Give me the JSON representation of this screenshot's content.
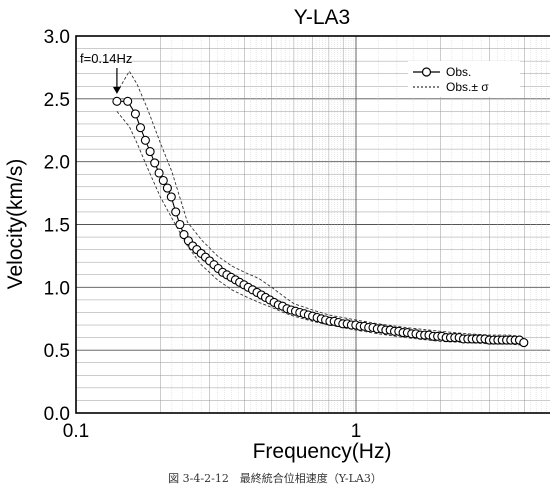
{
  "caption": "図 3-4-2-12　最終統合位相速度（Y-LA3）",
  "chart_data": {
    "type": "scatter",
    "title": "Y-LA3",
    "xlabel": "Frequency(Hz)",
    "ylabel": "Velocity(km/s)",
    "xscale": "log",
    "xlim": [
      0.1,
      5
    ],
    "ylim": [
      0,
      3
    ],
    "xticks": [
      {
        "value": 0.1,
        "label": "0.1"
      },
      {
        "value": 1,
        "label": "1"
      }
    ],
    "yticks": [
      {
        "value": 0,
        "label": "0.0"
      },
      {
        "value": 0.5,
        "label": "0.5"
      },
      {
        "value": 1,
        "label": "1.0"
      },
      {
        "value": 1.5,
        "label": "1.5"
      },
      {
        "value": 2,
        "label": "2.0"
      },
      {
        "value": 2.5,
        "label": "2.5"
      },
      {
        "value": 3,
        "label": "3.0"
      }
    ],
    "grid": true,
    "legend_position": "top-right",
    "annotation": {
      "text": "f=0.14Hz",
      "x": 0.14,
      "y": 2.5
    },
    "series": [
      {
        "name": "Obs.",
        "style": "line-circle",
        "x": [
          0.14,
          0.153,
          0.163,
          0.17,
          0.177,
          0.184,
          0.191,
          0.198,
          0.205,
          0.212,
          0.219,
          0.227,
          0.235,
          0.243,
          0.252,
          0.261,
          0.27,
          0.28,
          0.29,
          0.3,
          0.311,
          0.322,
          0.334,
          0.346,
          0.358,
          0.371,
          0.384,
          0.398,
          0.412,
          0.427,
          0.443,
          0.459,
          0.475,
          0.492,
          0.51,
          0.528,
          0.547,
          0.567,
          0.587,
          0.608,
          0.63,
          0.653,
          0.676,
          0.7,
          0.726,
          0.752,
          0.779,
          0.807,
          0.836,
          0.866,
          0.897,
          0.93,
          0.963,
          0.998,
          1.034,
          1.071,
          1.11,
          1.15,
          1.191,
          1.234,
          1.279,
          1.325,
          1.372,
          1.422,
          1.473,
          1.526,
          1.581,
          1.638,
          1.697,
          1.759,
          1.822,
          1.888,
          1.956,
          2.027,
          2.1,
          2.176,
          2.254,
          2.336,
          2.42,
          2.507,
          2.598,
          2.691,
          2.788,
          2.889,
          2.993,
          3.101,
          3.213,
          3.329,
          3.449,
          3.573,
          3.702,
          3.836,
          3.975
        ],
        "y": [
          2.48,
          2.48,
          2.38,
          2.27,
          2.17,
          2.08,
          1.99,
          1.91,
          1.85,
          1.79,
          1.72,
          1.6,
          1.5,
          1.42,
          1.37,
          1.33,
          1.3,
          1.27,
          1.24,
          1.21,
          1.18,
          1.15,
          1.12,
          1.1,
          1.08,
          1.06,
          1.04,
          1.02,
          1.0,
          0.98,
          0.96,
          0.94,
          0.92,
          0.9,
          0.88,
          0.86,
          0.85,
          0.83,
          0.82,
          0.81,
          0.8,
          0.79,
          0.78,
          0.77,
          0.76,
          0.75,
          0.74,
          0.73,
          0.73,
          0.72,
          0.71,
          0.71,
          0.7,
          0.7,
          0.69,
          0.69,
          0.68,
          0.68,
          0.67,
          0.67,
          0.66,
          0.66,
          0.65,
          0.65,
          0.64,
          0.64,
          0.63,
          0.63,
          0.62,
          0.62,
          0.62,
          0.61,
          0.61,
          0.61,
          0.6,
          0.6,
          0.6,
          0.6,
          0.59,
          0.59,
          0.59,
          0.59,
          0.59,
          0.59,
          0.58,
          0.58,
          0.58,
          0.58,
          0.58,
          0.58,
          0.58,
          0.58,
          0.56
        ]
      },
      {
        "name": "Obs.± σ",
        "style": "dashed",
        "upper": {
          "x": [
            0.14,
            0.155,
            0.165,
            0.18,
            0.2,
            0.22,
            0.25,
            0.28,
            0.32,
            0.36,
            0.4,
            0.45,
            0.5,
            0.55,
            0.6,
            0.7,
            0.8,
            1.0,
            1.2,
            1.5,
            2.0,
            2.5,
            3.0,
            3.5,
            3.9
          ],
          "y": [
            2.55,
            2.72,
            2.62,
            2.42,
            2.15,
            1.92,
            1.52,
            1.38,
            1.25,
            1.17,
            1.12,
            1.07,
            1.0,
            0.93,
            0.87,
            0.82,
            0.78,
            0.74,
            0.71,
            0.68,
            0.65,
            0.63,
            0.62,
            0.62,
            0.61
          ]
        },
        "lower": {
          "x": [
            0.14,
            0.155,
            0.165,
            0.18,
            0.2,
            0.22,
            0.25,
            0.28,
            0.32,
            0.36,
            0.4,
            0.45,
            0.5,
            0.55,
            0.6,
            0.7,
            0.8,
            1.0,
            1.2,
            1.5,
            2.0,
            2.5,
            3.0,
            3.5,
            3.9
          ],
          "y": [
            2.4,
            2.28,
            2.15,
            1.95,
            1.72,
            1.55,
            1.33,
            1.18,
            1.06,
            0.98,
            0.93,
            0.88,
            0.84,
            0.8,
            0.77,
            0.73,
            0.7,
            0.66,
            0.63,
            0.6,
            0.57,
            0.56,
            0.55,
            0.55,
            0.54
          ]
        }
      }
    ]
  }
}
